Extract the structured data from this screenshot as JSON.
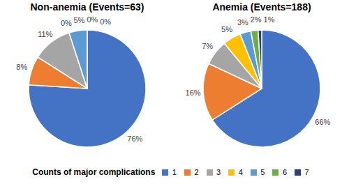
{
  "chart_data": [
    {
      "type": "pie",
      "title": "Non-anemia (Events=63)",
      "categories": [
        "1",
        "2",
        "3",
        "4",
        "5",
        "6",
        "7"
      ],
      "values": [
        76,
        8,
        11,
        0,
        5,
        0,
        0
      ],
      "value_labels": [
        "76%",
        "8%",
        "11%",
        "0%",
        "5%",
        "0%",
        "0%"
      ],
      "colors": [
        "#4472c4",
        "#ed7d31",
        "#a5a5a5",
        "#ffc000",
        "#5b9bd5",
        "#70ad47",
        "#264478"
      ],
      "data_labels": true,
      "legend": "bottom"
    },
    {
      "type": "pie",
      "title": "Anemia (Events=188)",
      "categories": [
        "1",
        "2",
        "3",
        "4",
        "5",
        "6",
        "7"
      ],
      "values": [
        66,
        16,
        7,
        5,
        3,
        2,
        1
      ],
      "value_labels": [
        "66%",
        "16%",
        "7%",
        "5%",
        "3%",
        "2%",
        "1%"
      ],
      "colors": [
        "#4472c4",
        "#ed7d31",
        "#a5a5a5",
        "#ffc000",
        "#5b9bd5",
        "#70ad47",
        "#264478"
      ],
      "data_labels": true,
      "legend": "bottom"
    }
  ],
  "legend_title": "Counts of major complications"
}
